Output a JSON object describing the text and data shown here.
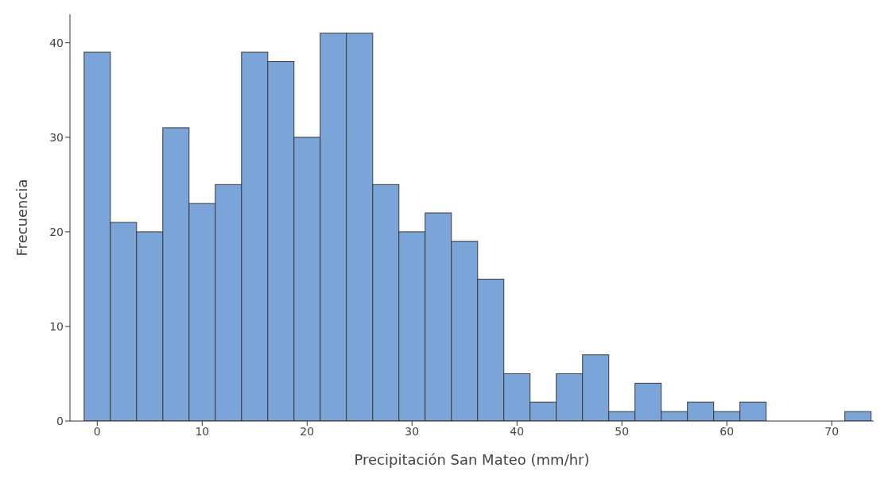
{
  "chart_data": {
    "type": "histogram",
    "xlabel": "Precipitación San Mateo (mm/hr)",
    "ylabel": "Frecuencia",
    "bins": [
      -1.25,
      1.25,
      3.75,
      6.25,
      8.75,
      11.25,
      13.75,
      16.25,
      18.75,
      21.25,
      23.75,
      26.25,
      28.75,
      31.25,
      33.75,
      36.25,
      38.75,
      41.25,
      43.75,
      46.25,
      48.75,
      51.25,
      53.75,
      56.25,
      58.75,
      61.25,
      63.75,
      66.25,
      68.75,
      71.25,
      73.75
    ],
    "values": [
      39,
      21,
      20,
      31,
      23,
      25,
      39,
      38,
      30,
      41,
      41,
      25,
      20,
      22,
      19,
      15,
      5,
      2,
      5,
      7,
      1,
      4,
      1,
      2,
      1,
      2,
      0,
      0,
      0,
      1
    ],
    "color": "#7ba5d9",
    "xlim": [
      -2.6,
      74
    ],
    "xticks": [
      0,
      10,
      20,
      30,
      40,
      50,
      60,
      70
    ],
    "ylim": [
      0,
      43
    ],
    "yticks": [
      0,
      10,
      20,
      30,
      40
    ],
    "grid": false
  }
}
